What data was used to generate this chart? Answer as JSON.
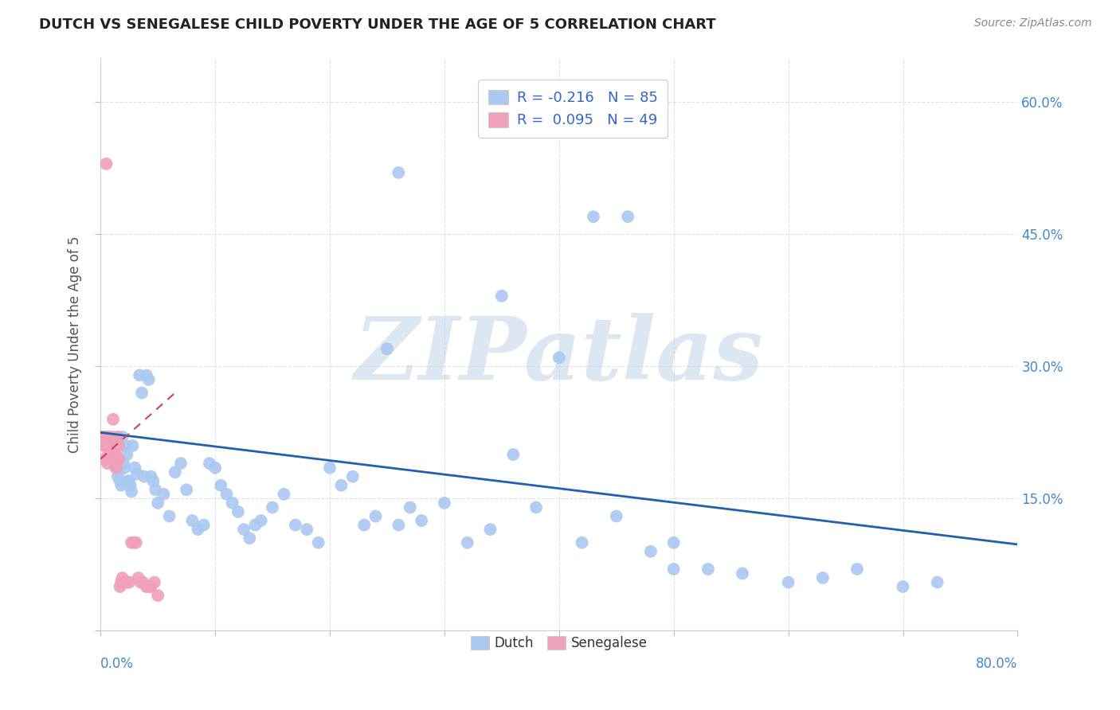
{
  "title": "DUTCH VS SENEGALESE CHILD POVERTY UNDER THE AGE OF 5 CORRELATION CHART",
  "source": "Source: ZipAtlas.com",
  "ylabel": "Child Poverty Under the Age of 5",
  "xlim": [
    0.0,
    0.8
  ],
  "ylim": [
    0.0,
    0.65
  ],
  "dutch_R": -0.216,
  "dutch_N": 85,
  "senegalese_R": 0.095,
  "senegalese_N": 49,
  "dutch_color": "#aac8f0",
  "senegalese_color": "#f0a0b8",
  "dutch_line_color": "#2060b0",
  "senegalese_line_color": "#d04060",
  "watermark": "ZIPatlas",
  "watermark_color_zip": "#b8cce0",
  "watermark_color_atlas": "#c8d8e8",
  "legend_color": "#3366cc",
  "title_color": "#222222",
  "source_color": "#888888",
  "axis_label_color": "#4488cc",
  "ylabel_color": "#555555",
  "grid_color": "#e0e0e0",
  "dutch_x": [
    0.005,
    0.008,
    0.01,
    0.012,
    0.013,
    0.014,
    0.015,
    0.016,
    0.017,
    0.018,
    0.019,
    0.02,
    0.021,
    0.022,
    0.023,
    0.024,
    0.025,
    0.026,
    0.027,
    0.028,
    0.03,
    0.032,
    0.034,
    0.036,
    0.038,
    0.04,
    0.042,
    0.044,
    0.046,
    0.048,
    0.05,
    0.055,
    0.06,
    0.065,
    0.07,
    0.075,
    0.08,
    0.085,
    0.09,
    0.095,
    0.1,
    0.105,
    0.11,
    0.115,
    0.12,
    0.125,
    0.13,
    0.135,
    0.14,
    0.15,
    0.16,
    0.17,
    0.18,
    0.19,
    0.2,
    0.21,
    0.22,
    0.23,
    0.24,
    0.25,
    0.26,
    0.27,
    0.28,
    0.3,
    0.32,
    0.34,
    0.36,
    0.38,
    0.4,
    0.42,
    0.45,
    0.48,
    0.5,
    0.53,
    0.56,
    0.6,
    0.63,
    0.66,
    0.7,
    0.73,
    0.26,
    0.43,
    0.46,
    0.35,
    0.5
  ],
  "dutch_y": [
    0.22,
    0.21,
    0.2,
    0.195,
    0.185,
    0.19,
    0.175,
    0.18,
    0.17,
    0.165,
    0.22,
    0.19,
    0.185,
    0.21,
    0.2,
    0.17,
    0.17,
    0.165,
    0.158,
    0.21,
    0.185,
    0.178,
    0.29,
    0.27,
    0.175,
    0.29,
    0.285,
    0.175,
    0.17,
    0.16,
    0.145,
    0.155,
    0.13,
    0.18,
    0.19,
    0.16,
    0.125,
    0.115,
    0.12,
    0.19,
    0.185,
    0.165,
    0.155,
    0.145,
    0.135,
    0.115,
    0.105,
    0.12,
    0.125,
    0.14,
    0.155,
    0.12,
    0.115,
    0.1,
    0.185,
    0.165,
    0.175,
    0.12,
    0.13,
    0.32,
    0.12,
    0.14,
    0.125,
    0.145,
    0.1,
    0.115,
    0.2,
    0.14,
    0.31,
    0.1,
    0.13,
    0.09,
    0.07,
    0.07,
    0.065,
    0.055,
    0.06,
    0.07,
    0.05,
    0.055,
    0.52,
    0.47,
    0.47,
    0.38,
    0.1
  ],
  "senegalese_x": [
    0.001,
    0.002,
    0.003,
    0.003,
    0.004,
    0.004,
    0.005,
    0.005,
    0.006,
    0.006,
    0.007,
    0.007,
    0.008,
    0.008,
    0.009,
    0.009,
    0.01,
    0.01,
    0.011,
    0.011,
    0.012,
    0.012,
    0.013,
    0.013,
    0.014,
    0.015,
    0.015,
    0.016,
    0.016,
    0.017,
    0.018,
    0.019,
    0.02,
    0.021,
    0.022,
    0.023,
    0.025,
    0.027,
    0.029,
    0.031,
    0.033,
    0.035,
    0.037,
    0.04,
    0.042,
    0.044,
    0.047,
    0.05,
    0.005
  ],
  "senegalese_y": [
    0.22,
    0.215,
    0.21,
    0.215,
    0.195,
    0.22,
    0.21,
    0.215,
    0.19,
    0.22,
    0.2,
    0.22,
    0.215,
    0.215,
    0.21,
    0.215,
    0.195,
    0.22,
    0.24,
    0.215,
    0.2,
    0.195,
    0.19,
    0.2,
    0.185,
    0.22,
    0.195,
    0.195,
    0.21,
    0.05,
    0.055,
    0.06,
    0.055,
    0.055,
    0.055,
    0.055,
    0.055,
    0.1,
    0.1,
    0.1,
    0.06,
    0.055,
    0.055,
    0.05,
    0.05,
    0.05,
    0.055,
    0.04,
    0.53
  ]
}
